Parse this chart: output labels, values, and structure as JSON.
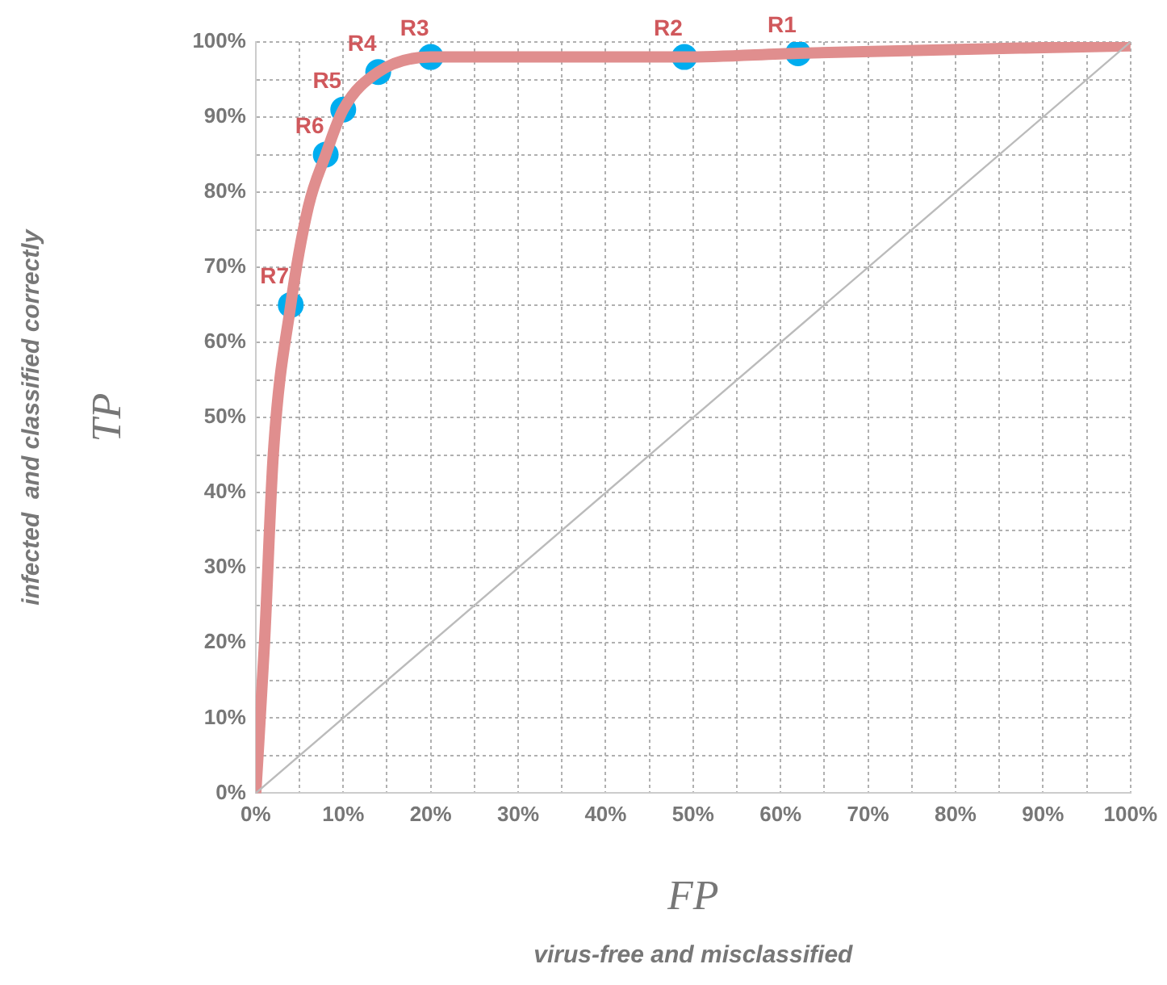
{
  "chart_data": {
    "type": "line",
    "xlabel": "FP",
    "ylabel": "TP",
    "annotations": [
      "virus-free and misclassified",
      "infected  and classified correctly"
    ],
    "xlim": [
      0,
      100
    ],
    "ylim": [
      0,
      100
    ],
    "xticks": [
      {
        "value": 0,
        "label": "0%"
      },
      {
        "value": 5,
        "label": null
      },
      {
        "value": 10,
        "label": "10%"
      },
      {
        "value": 15,
        "label": null
      },
      {
        "value": 20,
        "label": "20%"
      },
      {
        "value": 25,
        "label": null
      },
      {
        "value": 30,
        "label": "30%"
      },
      {
        "value": 35,
        "label": null
      },
      {
        "value": 40,
        "label": "40%"
      },
      {
        "value": 45,
        "label": null
      },
      {
        "value": 50,
        "label": "50%"
      },
      {
        "value": 55,
        "label": null
      },
      {
        "value": 60,
        "label": "60%"
      },
      {
        "value": 65,
        "label": null
      },
      {
        "value": 70,
        "label": "70%"
      },
      {
        "value": 75,
        "label": null
      },
      {
        "value": 80,
        "label": "80%"
      },
      {
        "value": 85,
        "label": null
      },
      {
        "value": 90,
        "label": "90%"
      },
      {
        "value": 95,
        "label": null
      },
      {
        "value": 100,
        "label": "100%"
      }
    ],
    "yticks": [
      {
        "value": 0,
        "label": "0%"
      },
      {
        "value": 5,
        "label": null
      },
      {
        "value": 10,
        "label": "10%"
      },
      {
        "value": 15,
        "label": null
      },
      {
        "value": 20,
        "label": "20%"
      },
      {
        "value": 25,
        "label": null
      },
      {
        "value": 30,
        "label": "30%"
      },
      {
        "value": 35,
        "label": null
      },
      {
        "value": 40,
        "label": "40%"
      },
      {
        "value": 45,
        "label": null
      },
      {
        "value": 50,
        "label": "50%"
      },
      {
        "value": 55,
        "label": null
      },
      {
        "value": 60,
        "label": "60%"
      },
      {
        "value": 65,
        "label": null
      },
      {
        "value": 70,
        "label": "70%"
      },
      {
        "value": 75,
        "label": null
      },
      {
        "value": 80,
        "label": "80%"
      },
      {
        "value": 85,
        "label": null
      },
      {
        "value": 90,
        "label": "90%"
      },
      {
        "value": 95,
        "label": null
      },
      {
        "value": 100,
        "label": "100%"
      }
    ],
    "grid": true,
    "legend": false,
    "series": [
      {
        "type": "line",
        "color": "#bbbbbb",
        "marker": "none",
        "x": [
          0,
          100
        ],
        "values": [
          0,
          100
        ]
      },
      {
        "type": "line",
        "color": "#e08e8e",
        "marker": "none",
        "x": [
          0,
          1,
          2,
          4,
          6,
          8,
          10,
          14,
          20,
          30,
          49,
          62,
          100
        ],
        "values": [
          0,
          20,
          45,
          65,
          78,
          85,
          91,
          96,
          98,
          98,
          98,
          98.5,
          99.5
        ]
      },
      {
        "type": "scatter",
        "color": "#00adef",
        "marker": "circle",
        "x": [
          4,
          8,
          10,
          14,
          20,
          49,
          62
        ],
        "values": [
          65,
          85,
          91,
          96,
          98,
          98,
          98.5
        ],
        "value_labels": [
          "R7",
          "R6",
          "R5",
          "R4",
          "R3",
          "R2",
          "R1"
        ]
      }
    ]
  }
}
